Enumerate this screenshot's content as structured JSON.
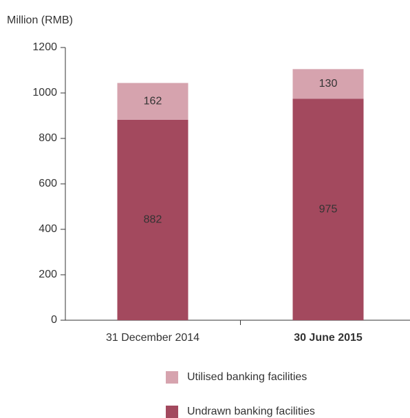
{
  "chart_data": {
    "type": "stacked_bar",
    "y_axis_label": "Million (RMB)",
    "categories": [
      "31 December 2014",
      "30 June 2015"
    ],
    "series": [
      {
        "name": "Undrawn banking facilities",
        "color": "#a3495e",
        "values": [
          882,
          975
        ]
      },
      {
        "name": "Utilised banking facilities",
        "color": "#d6a3ae",
        "values": [
          162,
          130
        ]
      }
    ],
    "ylim": [
      0,
      1200
    ],
    "yticks": [
      0,
      200,
      400,
      600,
      800,
      1000,
      1200
    ]
  }
}
